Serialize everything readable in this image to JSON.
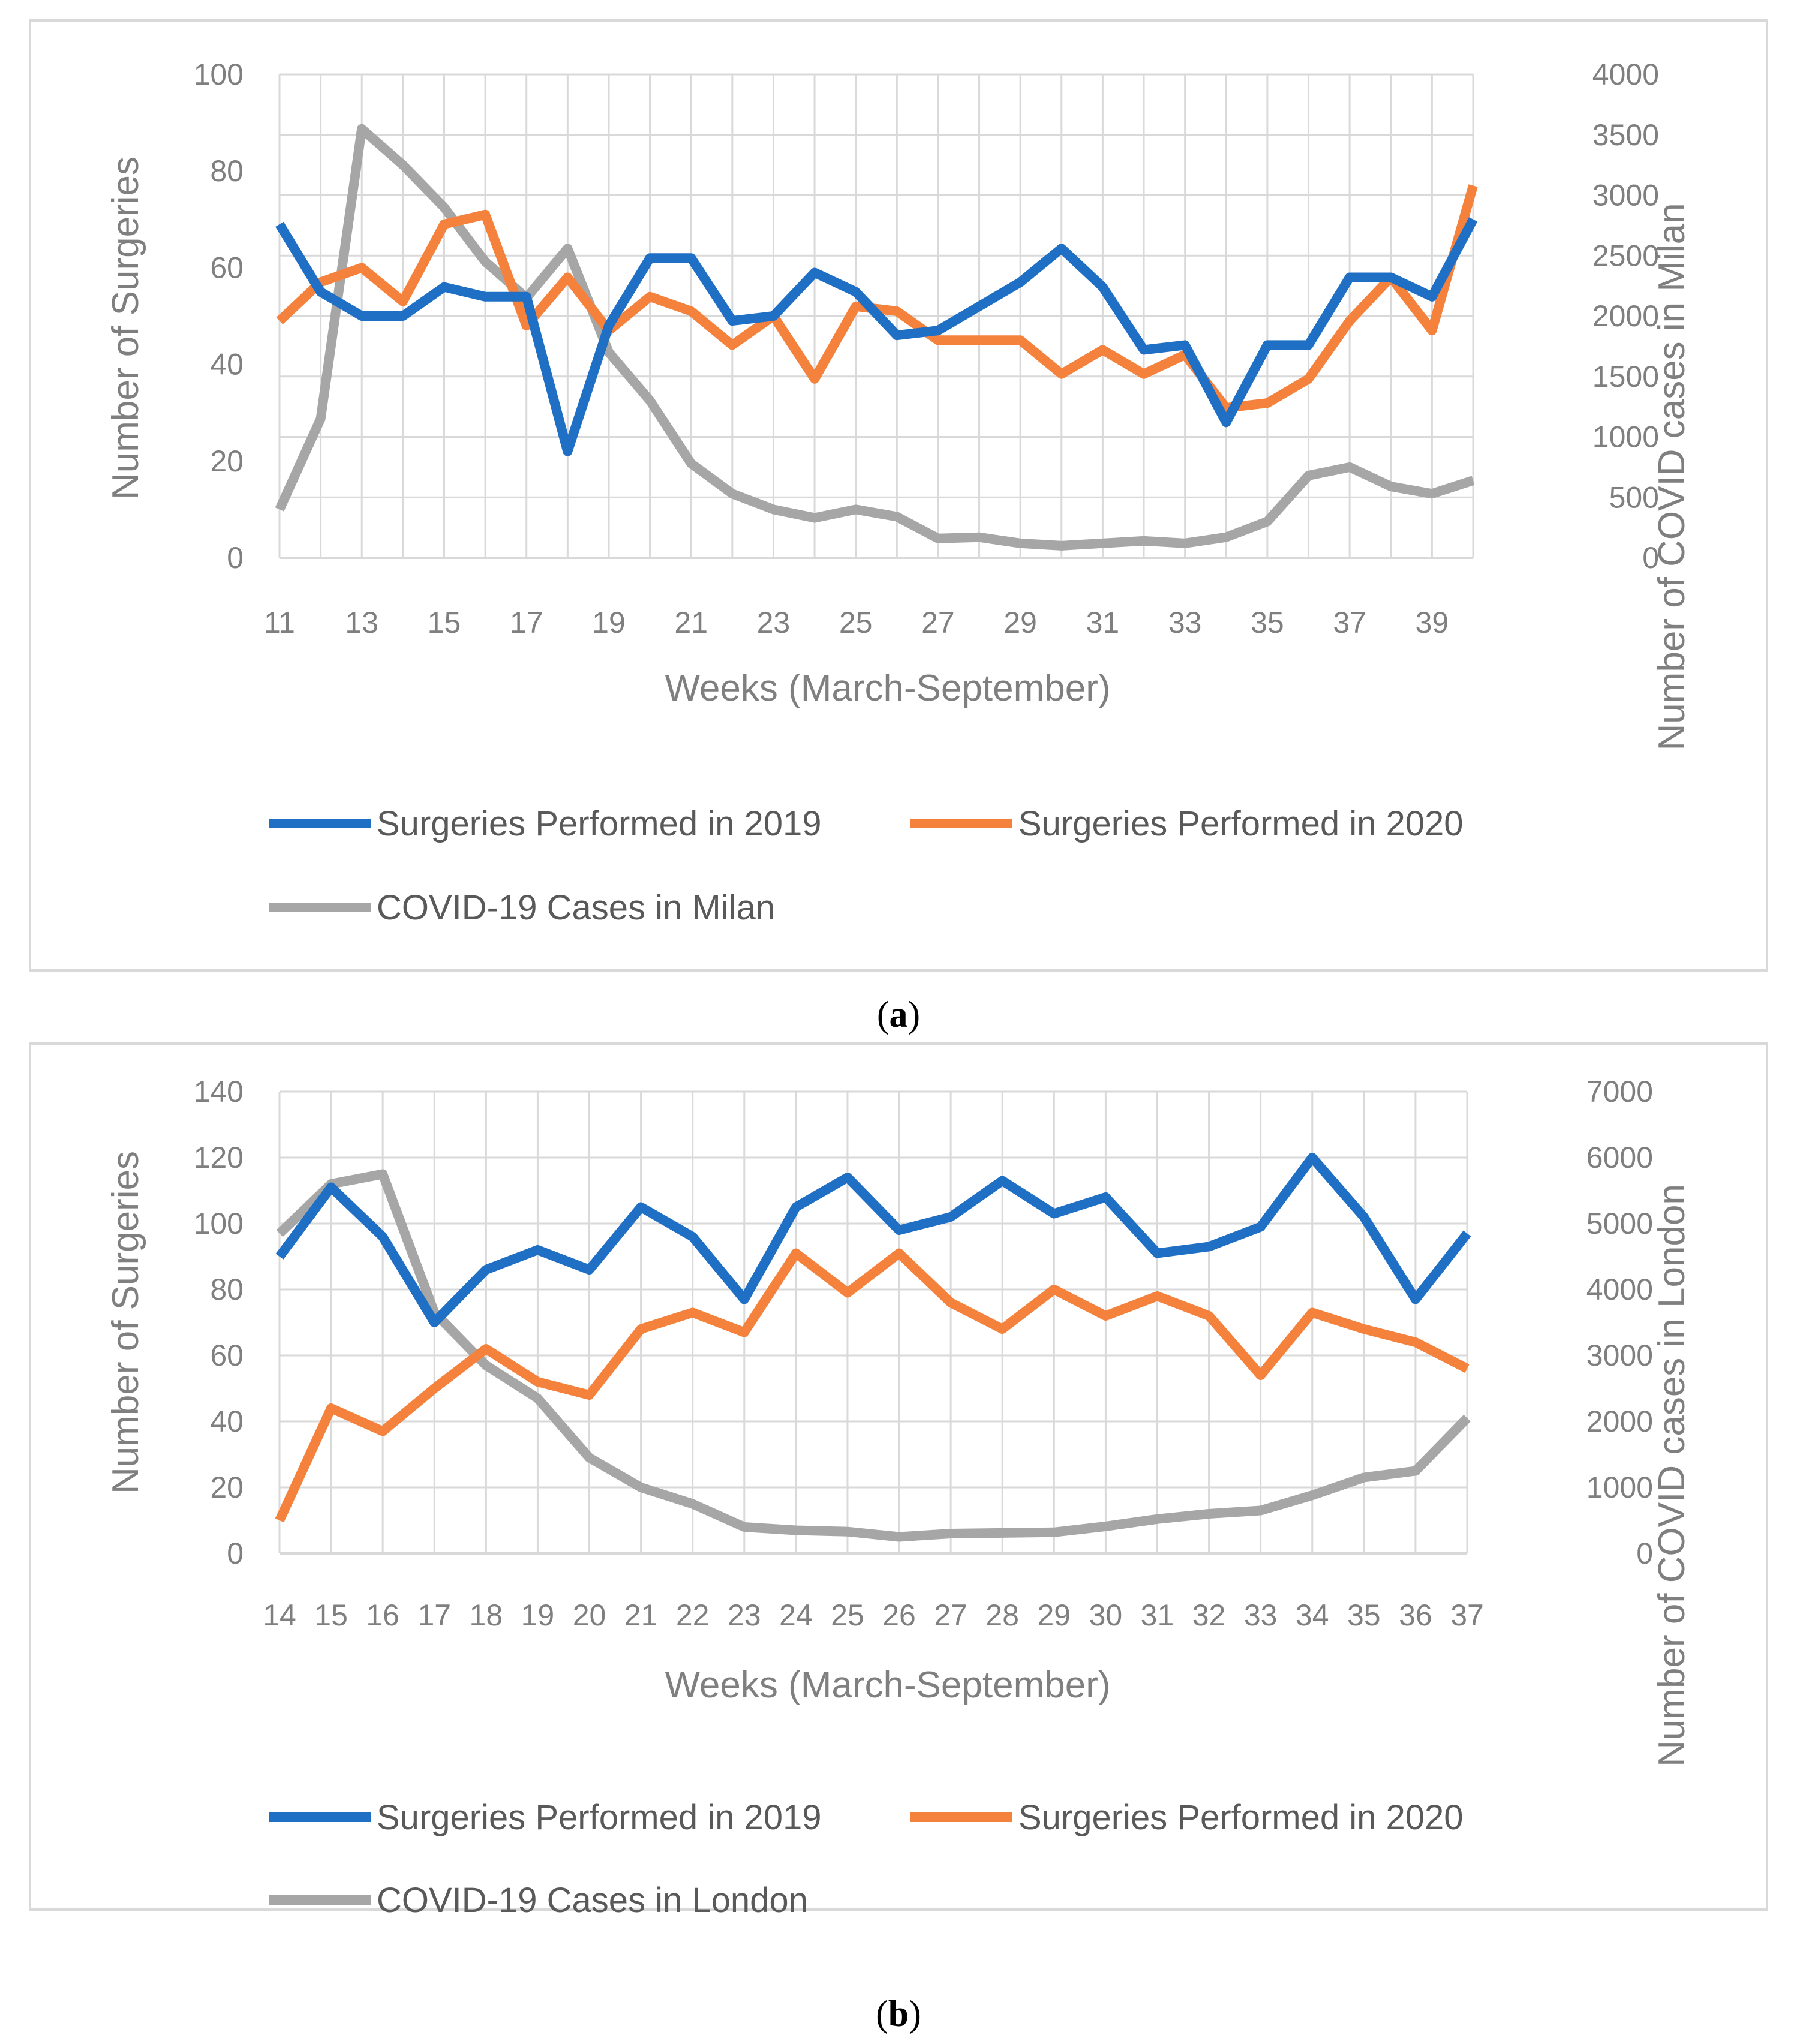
{
  "chart_data": [
    {
      "type": "line",
      "caption_letter": "a",
      "x_title": "Weeks (March-September)",
      "y_left_title": "Number of Surgeries",
      "y_right_title": "Number of COVID cases in Milan",
      "x": [
        11,
        12,
        13,
        14,
        15,
        16,
        17,
        18,
        19,
        20,
        21,
        22,
        23,
        24,
        25,
        26,
        27,
        28,
        29,
        30,
        31,
        32,
        33,
        34,
        35,
        36,
        37,
        38,
        39,
        40
      ],
      "x_tick_labels": [
        "11",
        "13",
        "15",
        "17",
        "19",
        "21",
        "23",
        "25",
        "27",
        "29",
        "31",
        "33",
        "35",
        "37",
        "39"
      ],
      "ylim_left": [
        0,
        100
      ],
      "yticks_left": [
        "0",
        "20",
        "40",
        "60",
        "80",
        "100"
      ],
      "ylim_right": [
        0,
        4000
      ],
      "yticks_right": [
        "0",
        "500",
        "1000",
        "1500",
        "2000",
        "2500",
        "3000",
        "3500",
        "4000"
      ],
      "grid": true,
      "legend_position": "bottom",
      "series": [
        {
          "name": "Surgeries Performed in 2019",
          "axis": "left",
          "color": "#1f6fc5",
          "values": [
            69,
            55,
            50,
            50,
            56,
            54,
            54,
            22,
            48,
            62,
            62,
            49,
            50,
            59,
            55,
            46,
            47,
            52,
            57,
            64,
            56,
            43,
            44,
            28,
            44,
            44,
            58,
            58,
            54,
            70
          ]
        },
        {
          "name": "Surgeries Performed in 2020",
          "axis": "left",
          "color": "#f5823c",
          "values": [
            49,
            57,
            60,
            53,
            69,
            71,
            48,
            58,
            47,
            54,
            51,
            44,
            50,
            37,
            52,
            51,
            45,
            45,
            45,
            38,
            43,
            38,
            42,
            31,
            32,
            37,
            49,
            58,
            47,
            77
          ]
        },
        {
          "name": "COVID-19 Cases in Milan",
          "axis": "right",
          "color": "#a6a6a6",
          "values": [
            400,
            1150,
            3550,
            3250,
            2900,
            2450,
            2150,
            2560,
            1700,
            1300,
            780,
            530,
            400,
            330,
            400,
            340,
            160,
            170,
            120,
            100,
            120,
            140,
            120,
            170,
            300,
            680,
            750,
            590,
            530,
            640
          ]
        }
      ]
    },
    {
      "type": "line",
      "caption_letter": "b",
      "x_title": "Weeks (March-September)",
      "y_left_title": "Number of Surgeries",
      "y_right_title": "Number of COVID cases in London",
      "x": [
        14,
        15,
        16,
        17,
        18,
        19,
        20,
        21,
        22,
        23,
        24,
        25,
        26,
        27,
        28,
        29,
        30,
        31,
        32,
        33,
        34,
        35,
        36,
        37
      ],
      "x_tick_labels": [
        "14",
        "15",
        "16",
        "17",
        "18",
        "19",
        "20",
        "21",
        "22",
        "23",
        "24",
        "25",
        "26",
        "27",
        "28",
        "29",
        "30",
        "31",
        "32",
        "33",
        "34",
        "35",
        "36",
        "37"
      ],
      "ylim_left": [
        0,
        140
      ],
      "yticks_left": [
        "0",
        "20",
        "40",
        "60",
        "80",
        "100",
        "120",
        "140"
      ],
      "ylim_right": [
        0,
        7000
      ],
      "yticks_right": [
        "0",
        "1000",
        "2000",
        "3000",
        "4000",
        "5000",
        "6000",
        "7000"
      ],
      "grid": true,
      "legend_position": "bottom",
      "series": [
        {
          "name": "Surgeries Performed in 2019",
          "axis": "left",
          "color": "#1f6fc5",
          "values": [
            90,
            111,
            96,
            70,
            86,
            92,
            86,
            105,
            96,
            77,
            105,
            114,
            98,
            102,
            113,
            103,
            108,
            91,
            93,
            99,
            120,
            102,
            77,
            97
          ]
        },
        {
          "name": "Surgeries Performed in 2020",
          "axis": "left",
          "color": "#f5823c",
          "values": [
            10,
            44,
            37,
            50,
            62,
            52,
            48,
            68,
            73,
            67,
            91,
            79,
            91,
            76,
            68,
            80,
            72,
            78,
            72,
            54,
            73,
            68,
            64,
            56
          ]
        },
        {
          "name": "COVID-19 Cases in London",
          "axis": "right",
          "color": "#a6a6a6",
          "values": [
            4850,
            5600,
            5750,
            3650,
            2850,
            2350,
            1450,
            1000,
            750,
            400,
            350,
            330,
            250,
            300,
            310,
            320,
            410,
            520,
            600,
            650,
            880,
            1150,
            1250,
            2050
          ]
        }
      ]
    }
  ]
}
